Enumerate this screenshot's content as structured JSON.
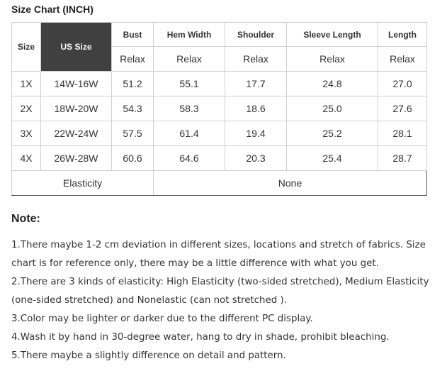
{
  "title": "Size Chart (INCH)",
  "table": {
    "headers": {
      "size": "Size",
      "us_size": "US Size",
      "bust": "Bust",
      "hem_width": "Hem Width",
      "shoulder": "Shoulder",
      "sleeve_length": "Sleeve Length",
      "length": "Length"
    },
    "subheaders": [
      "Relax",
      "Relax",
      "Relax",
      "Relax",
      "Relax"
    ],
    "rows": [
      {
        "size": "1X",
        "us_size": "14W-16W",
        "bust": "51.2",
        "hem_width": "55.1",
        "shoulder": "17.7",
        "sleeve_length": "24.8",
        "length": "27.0"
      },
      {
        "size": "2X",
        "us_size": "18W-20W",
        "bust": "54.3",
        "hem_width": "58.3",
        "shoulder": "18.6",
        "sleeve_length": "25.0",
        "length": "27.6"
      },
      {
        "size": "3X",
        "us_size": "22W-24W",
        "bust": "57.5",
        "hem_width": "61.4",
        "shoulder": "19.4",
        "sleeve_length": "25.2",
        "length": "28.1"
      },
      {
        "size": "4X",
        "us_size": "26W-28W",
        "bust": "60.6",
        "hem_width": "64.6",
        "shoulder": "20.3",
        "sleeve_length": "25.4",
        "length": "28.7"
      }
    ],
    "elasticity_label": "Elasticity",
    "elasticity_value": "None"
  },
  "notes": {
    "heading": "Note:",
    "items": [
      "1.There maybe 1-2 cm deviation in different sizes, locations and stretch of fabrics. Size chart is for reference only, there may be a little difference with what you get.",
      "2.There are 3 kinds of elasticity: High Elasticity (two-sided stretched), Medium Elasticity (one-sided stretched) and Nonelastic (can not stretched ).",
      "3.Color may be lighter or darker due to the different PC display.",
      "4.Wash it by hand in 30-degree water, hang to dry in shade, prohibit bleaching.",
      "5.There maybe a slightly difference on detail and pattern."
    ]
  }
}
